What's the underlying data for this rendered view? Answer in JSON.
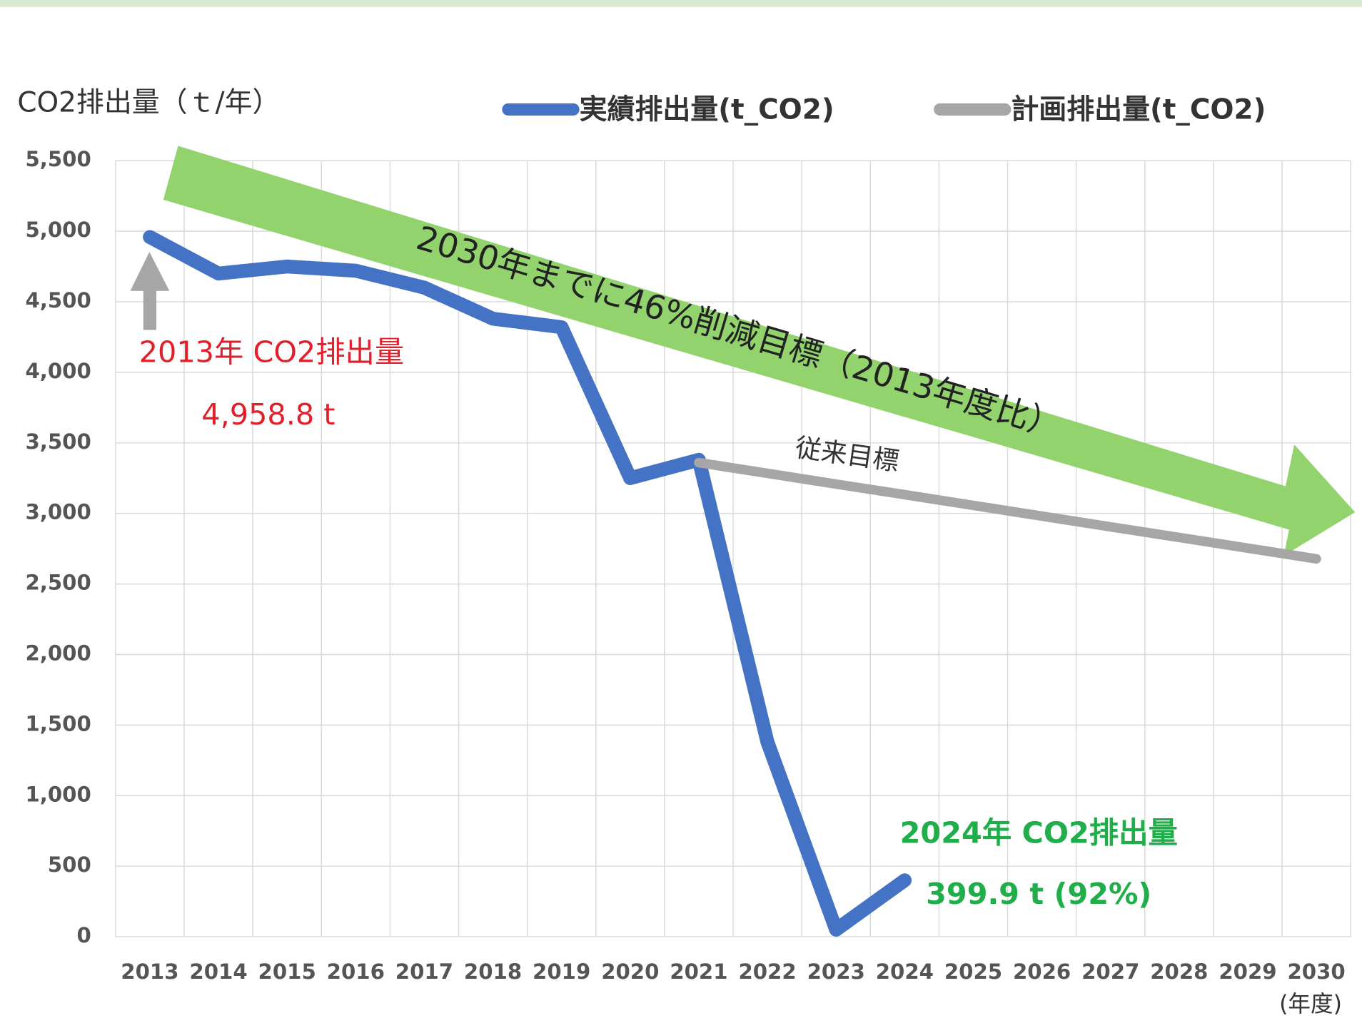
{
  "chart_data": {
    "type": "line",
    "y_axis_title": "CO2排出量（ｔ/年）",
    "x_axis_unit": "(年度)",
    "categories": [
      "2013",
      "2014",
      "2015",
      "2016",
      "2017",
      "2018",
      "2019",
      "2020",
      "2021",
      "2022",
      "2023",
      "2024",
      "2025",
      "2026",
      "2027",
      "2028",
      "2029",
      "2030"
    ],
    "series": [
      {
        "name": "実績排出量(t_CO2)",
        "color": "#4472c4",
        "values": [
          4958.8,
          4700,
          4750,
          4720,
          4600,
          4380,
          4320,
          3250,
          3380,
          1380,
          50,
          399.9,
          null,
          null,
          null,
          null,
          null,
          null
        ]
      },
      {
        "name": "計画排出量(t_CO2)",
        "color": "#a6a6a6",
        "values": [
          null,
          null,
          null,
          null,
          null,
          null,
          null,
          null,
          3360,
          3284,
          3208,
          3133,
          3057,
          2981,
          2905,
          2830,
          2754,
          2678
        ]
      }
    ],
    "ylim": [
      0,
      5500
    ],
    "yticks": [
      0,
      500,
      {
        "value": 1000,
        "label": "1,000"
      },
      {
        "value": 1500,
        "label": "1,500"
      },
      {
        "value": 2000,
        "label": "2,000"
      },
      {
        "value": 2500,
        "label": "2,500"
      },
      {
        "value": 3000,
        "label": "3,000"
      },
      {
        "value": 3500,
        "label": "3,500"
      },
      {
        "value": 4000,
        "label": "4,000"
      },
      {
        "value": 4500,
        "label": "4,500"
      },
      {
        "value": 5000,
        "label": "5,000"
      },
      {
        "value": 5500,
        "label": "5,500"
      }
    ],
    "grid": true,
    "legend": "top",
    "annotations": {
      "start_label": "2013年 CO2排出量",
      "start_value": "4,958.8 t",
      "end_label": "2024年 CO2排出量",
      "end_value": "399.9 t (92%)",
      "target": "2030年までに46%削減目標（2013年度比）",
      "old_target": "従来目標"
    }
  }
}
